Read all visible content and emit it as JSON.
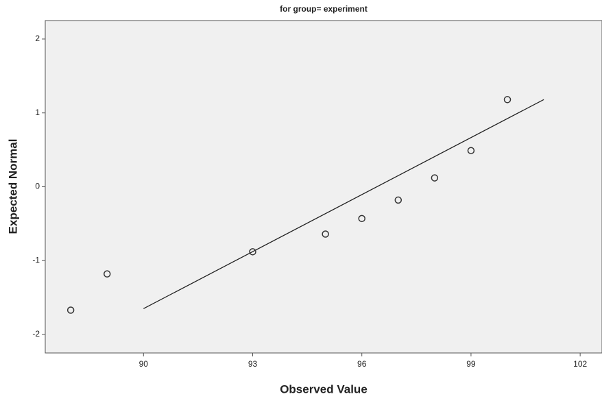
{
  "chart_data": {
    "type": "scatter",
    "title": "for group= experiment",
    "x_label": "Observed Value",
    "y_label": "Expected Normal",
    "x": [
      88,
      89,
      93,
      95,
      96,
      97,
      98,
      99,
      100
    ],
    "values": [
      -1.67,
      -1.18,
      -0.88,
      -0.64,
      -0.43,
      -0.18,
      0.12,
      0.49,
      1.18
    ],
    "color": "#333333",
    "reference_line": {
      "x": [
        90,
        101
      ],
      "values": [
        -1.65,
        1.18
      ],
      "color": "#222222"
    },
    "xlim": [
      87.3,
      102.6
    ],
    "xticks": [
      90,
      93,
      96,
      99,
      102
    ],
    "ylim": [
      -2.25,
      2.25
    ],
    "yticks": [
      -2,
      -1,
      0,
      1,
      2
    ],
    "grid": false
  }
}
